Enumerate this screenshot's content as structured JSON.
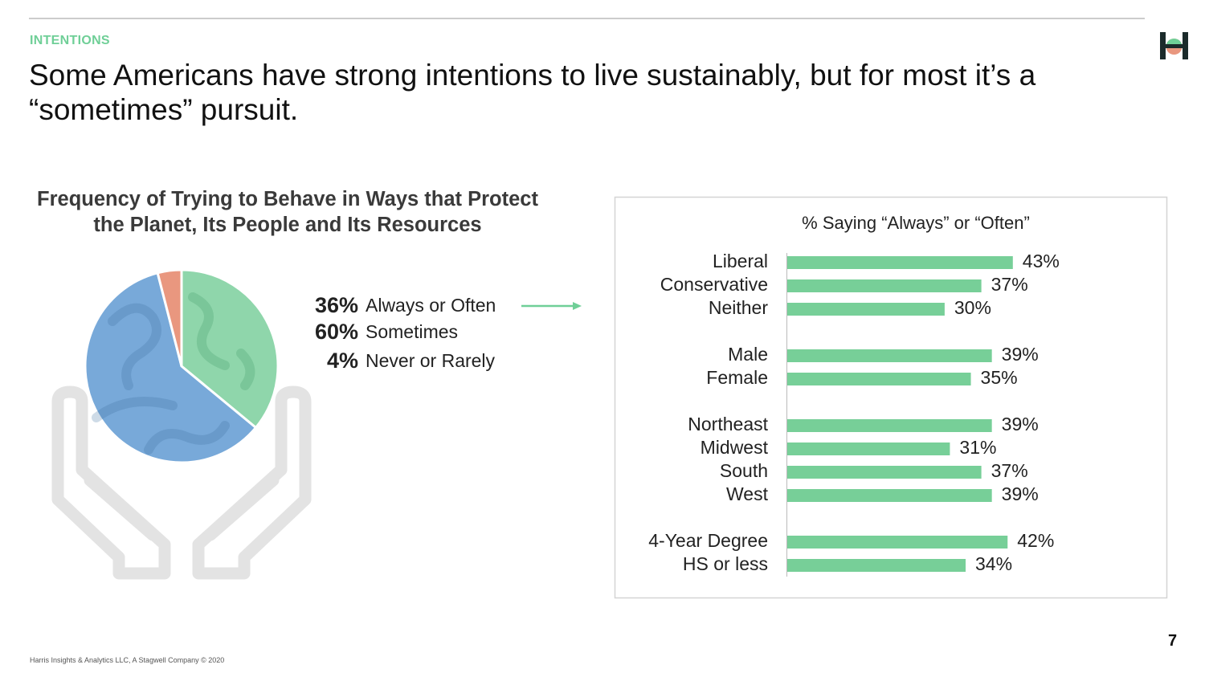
{
  "header": {
    "section": "INTENTIONS",
    "title": "Some Americans have strong intentions to live sustainably, but for most it’s a “sometimes” pursuit."
  },
  "chart_data": [
    {
      "type": "pie",
      "title": "Frequency of Trying to Behave in Ways that Protect the Planet, Its People and Its Resources",
      "categories": [
        "Always or Often",
        "Sometimes",
        "Never or Rarely"
      ],
      "values": [
        36,
        60,
        4
      ],
      "value_labels": [
        "36%",
        "60%",
        "4%"
      ],
      "colors": [
        "#8fd6ab",
        "#78a9d9",
        "#e9977f"
      ]
    },
    {
      "type": "bar",
      "orientation": "horizontal",
      "title": "% Saying “Always” or “Often”",
      "categories": [
        "Liberal",
        "Conservative",
        "Neither",
        "Male",
        "Female",
        "Northeast",
        "Midwest",
        "South",
        "West",
        "4-Year Degree",
        "HS or less"
      ],
      "values": [
        43,
        37,
        30,
        39,
        35,
        39,
        31,
        37,
        39,
        42,
        34
      ],
      "value_labels": [
        "43%",
        "37%",
        "30%",
        "39%",
        "35%",
        "39%",
        "31%",
        "37%",
        "39%",
        "42%",
        "34%"
      ],
      "color": "#77cf98"
    }
  ],
  "footer": {
    "source": "Harris Insights & Analytics LLC, A Stagwell Company © 2020",
    "page_number": "7"
  }
}
